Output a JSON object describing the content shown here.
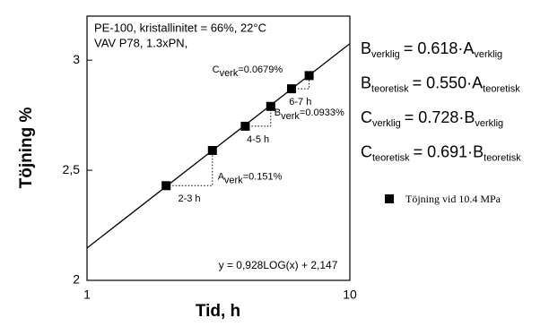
{
  "chart_data": {
    "type": "scatter",
    "subtitle_lines": [
      "PE-100, kristallinitet = 66%, 22°C",
      "VAV P78, 1.3xPN,"
    ],
    "x_label": "Tid, h",
    "y_label": "Töjning %",
    "x_log": true,
    "xlim": [
      1,
      10
    ],
    "xticks": [
      1,
      10
    ],
    "ylim": [
      2,
      3.2
    ],
    "yticks": [
      2,
      {
        "value": 2.5,
        "label": "2,5"
      },
      3
    ],
    "x": [
      2,
      3,
      4,
      5,
      6,
      7
    ],
    "series": [
      {
        "name": "Töjning vid 10.4 MPa",
        "color": "#000000",
        "values": [
          2.43,
          2.59,
          2.7,
          2.79,
          2.87,
          2.93
        ]
      }
    ],
    "trendline": {
      "x": [
        1,
        10
      ],
      "values": [
        2.147,
        3.075
      ],
      "label": "y = 0,928LOG(x) + 2,147",
      "color": "#000000"
    },
    "steps": [
      {
        "range": "2-3 h",
        "diff": {
          "main": "A",
          "sub": "verk",
          "rest": "=0.151%"
        }
      },
      {
        "range": "4-5 h",
        "diff": {
          "main": "B",
          "sub": "verk",
          "rest": "=0.0933%"
        }
      },
      {
        "range": "6-7 h",
        "diff": {
          "main": "C",
          "sub": "verk",
          "rest": "=0.0679%"
        }
      }
    ],
    "equations": [
      {
        "lhs": "B",
        "lhs_sub": "verklig",
        "rhs": "= 0.618·A",
        "rhs_sub": "verklig"
      },
      {
        "lhs": "B",
        "lhs_sub": "teoretisk",
        "rhs": "= 0.550·A",
        "rhs_sub": "teoretisk"
      },
      {
        "lhs": "C",
        "lhs_sub": "verklig",
        "rhs": "= 0.728·B",
        "rhs_sub": "verklig"
      },
      {
        "lhs": "C",
        "lhs_sub": "teoretisk",
        "rhs": "= 0.691·B",
        "rhs_sub": "teoretisk"
      }
    ]
  }
}
